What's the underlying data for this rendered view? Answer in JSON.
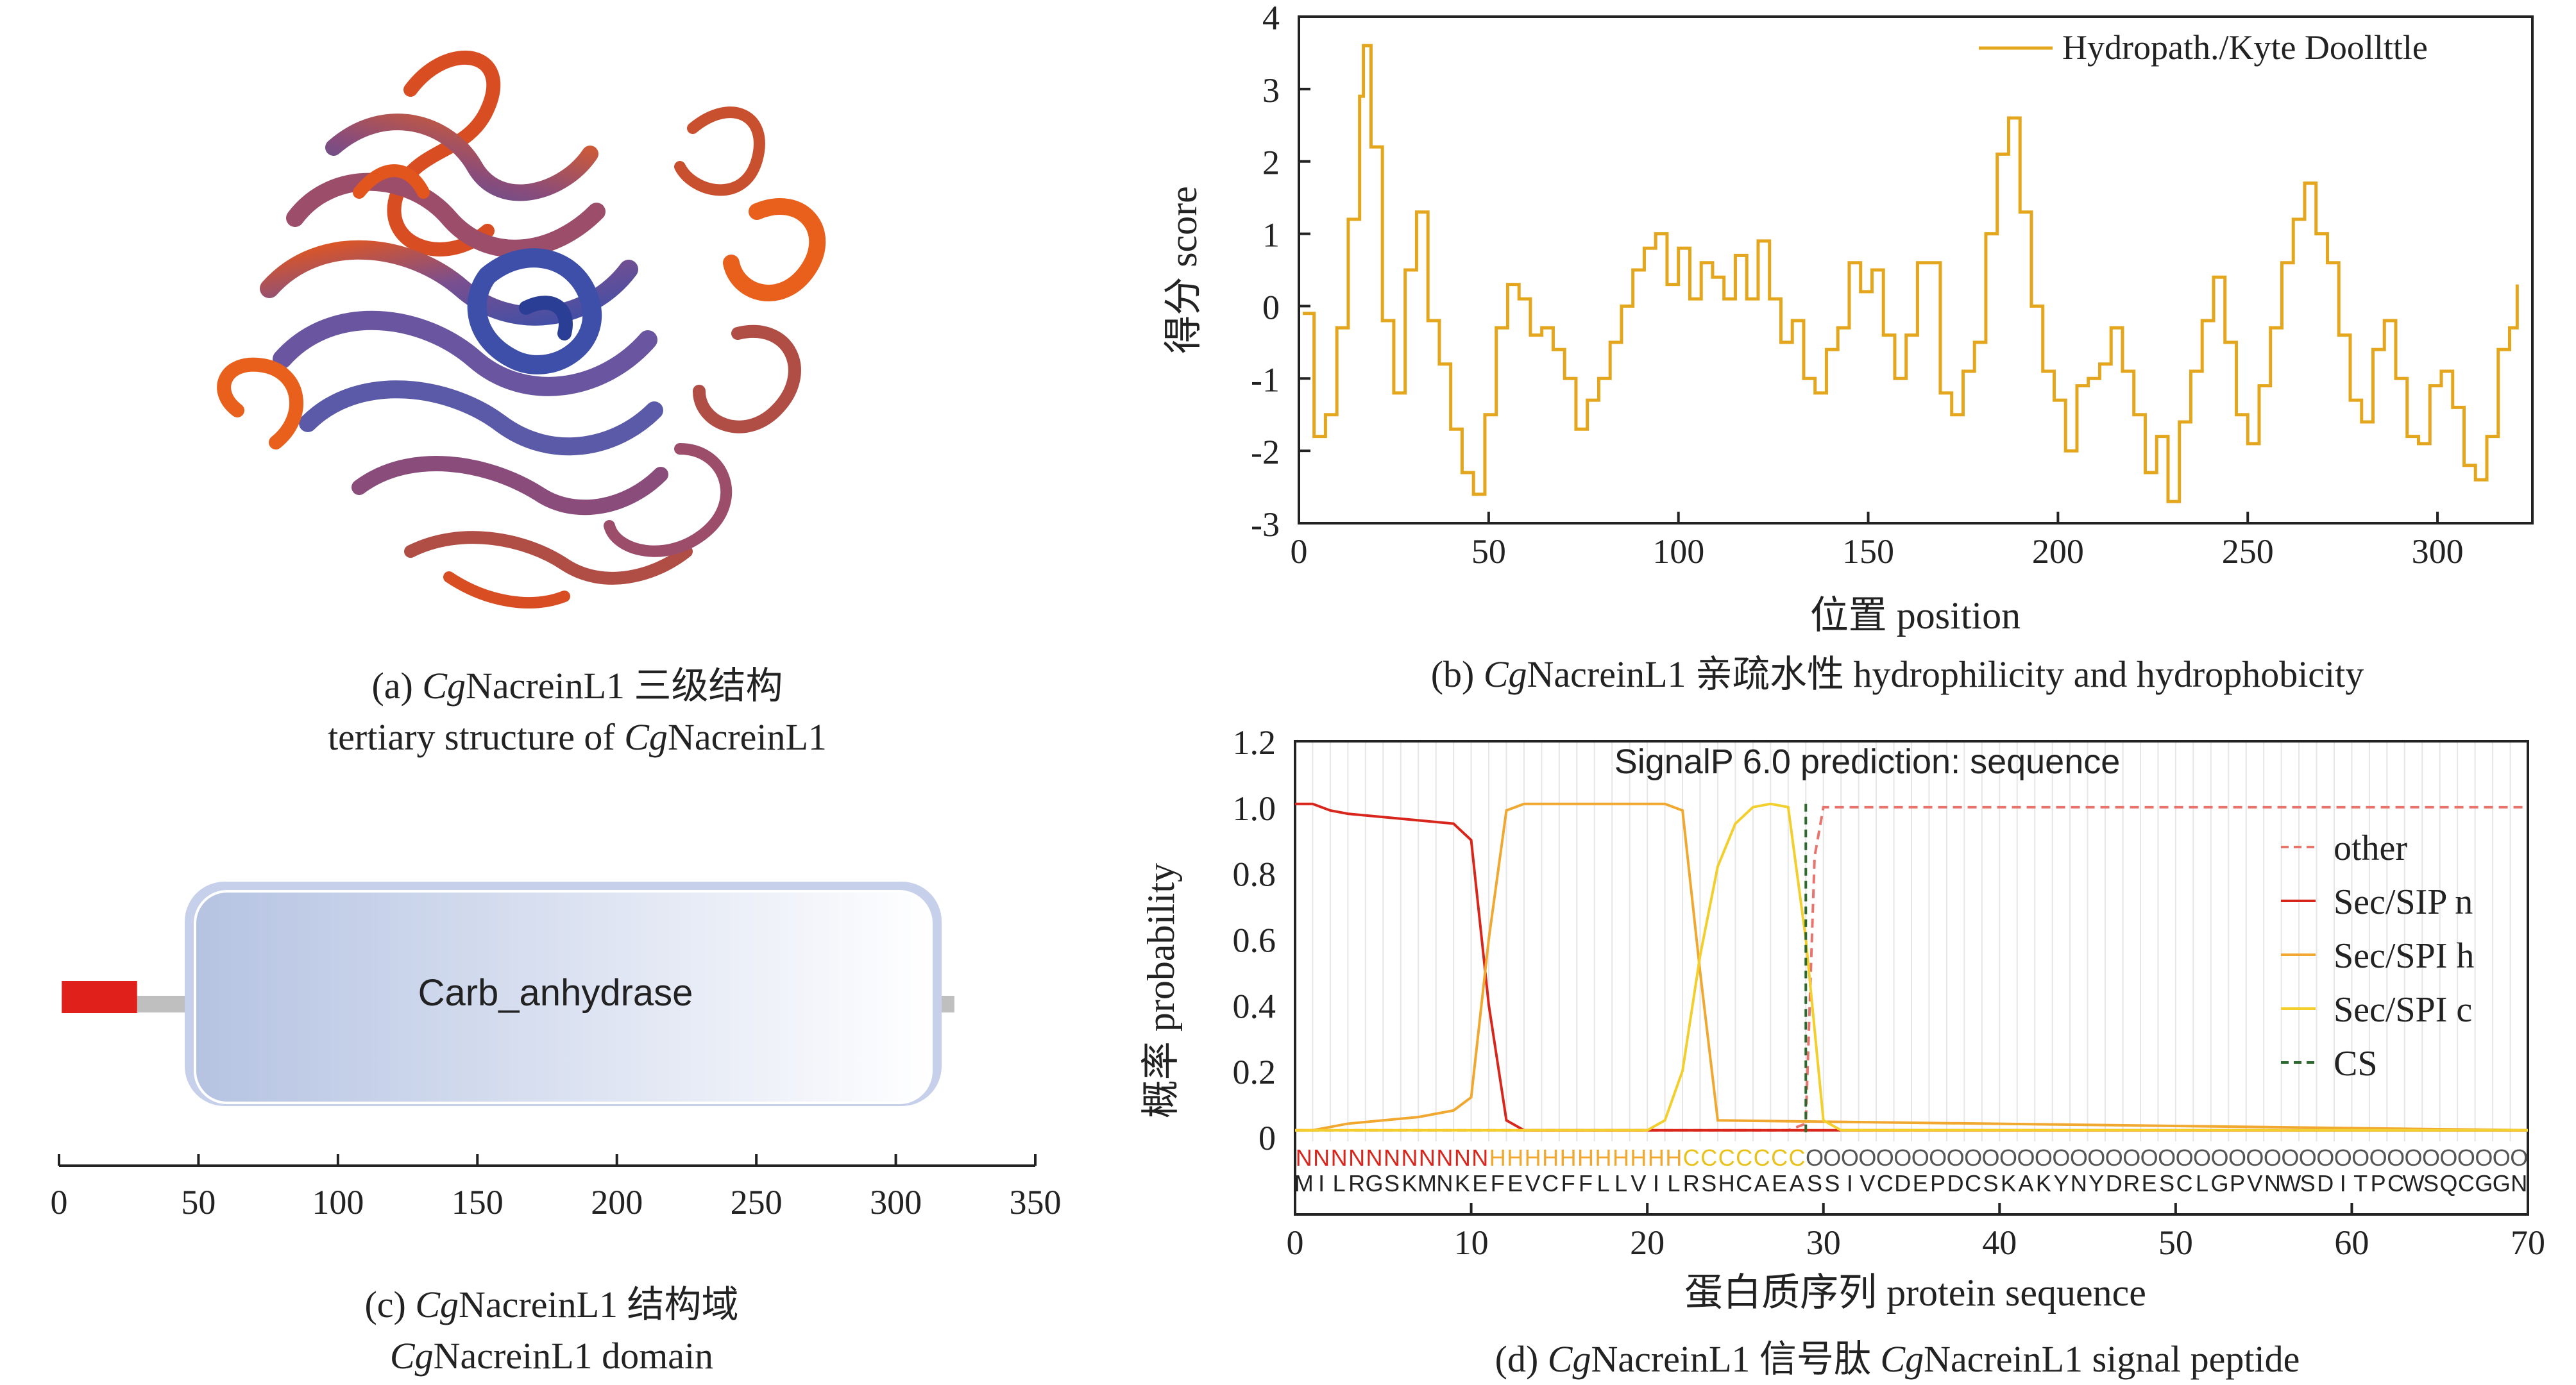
{
  "panel_a": {
    "caption_prefix": "(a) ",
    "caption_italic": "Cg",
    "caption_rest": "NacreinL1 三级结构",
    "caption_line2_text": "tertiary structure of ",
    "caption_line2_italic": "Cg",
    "caption_line2_rest": "NacreinL1"
  },
  "panel_b": {
    "caption_prefix": "(b) ",
    "caption_italic": "Cg",
    "caption_rest": "NacreinL1 亲疏水性 hydrophilicity and hydrophobicity",
    "chart_data": {
      "type": "line",
      "xlabel": "位置 position",
      "ylabel": "得分 score",
      "xlim": [
        0,
        325
      ],
      "ylim": [
        -3,
        4
      ],
      "xticks": [
        "0",
        "50",
        "100",
        "150",
        "200",
        "250",
        "300"
      ],
      "yticks": [
        "-3",
        "-2",
        "-1",
        "0",
        "1",
        "2",
        "3",
        "4"
      ],
      "legend_position": "top-right",
      "series": [
        {
          "name": "Hydropath./Kyte Doollttle",
          "color": "#e3a61c",
          "x": [
            1,
            4,
            7,
            10,
            13,
            16,
            17,
            19,
            22,
            25,
            28,
            31,
            34,
            37,
            40,
            43,
            46,
            49,
            52,
            55,
            58,
            61,
            64,
            67,
            70,
            73,
            76,
            79,
            82,
            85,
            88,
            91,
            94,
            97,
            100,
            103,
            106,
            109,
            112,
            115,
            118,
            121,
            124,
            127,
            130,
            133,
            136,
            139,
            142,
            145,
            148,
            151,
            154,
            157,
            160,
            163,
            166,
            169,
            172,
            175,
            178,
            181,
            184,
            187,
            190,
            193,
            196,
            199,
            202,
            205,
            208,
            211,
            214,
            217,
            220,
            223,
            226,
            229,
            232,
            235,
            238,
            241,
            244,
            247,
            250,
            253,
            256,
            259,
            262,
            265,
            268,
            271,
            274,
            277,
            280,
            283,
            286,
            289,
            292,
            295,
            298,
            301,
            304,
            307,
            310,
            313,
            316,
            319,
            321
          ],
          "y": [
            -0.1,
            -1.8,
            -1.5,
            -0.3,
            1.2,
            2.9,
            3.6,
            2.2,
            -0.2,
            -1.2,
            0.5,
            1.3,
            -0.2,
            -0.8,
            -1.7,
            -2.3,
            -2.6,
            -1.5,
            -0.3,
            0.3,
            0.1,
            -0.4,
            -0.3,
            -0.6,
            -1.0,
            -1.7,
            -1.3,
            -1.0,
            -0.5,
            0.0,
            0.5,
            0.8,
            1.0,
            0.3,
            0.8,
            0.1,
            0.6,
            0.4,
            0.1,
            0.7,
            0.1,
            0.9,
            0.1,
            -0.5,
            -0.2,
            -1.0,
            -1.2,
            -0.6,
            -0.3,
            0.6,
            0.2,
            0.5,
            -0.4,
            -1.0,
            -0.4,
            0.6,
            0.6,
            -1.2,
            -1.5,
            -0.9,
            -0.5,
            1.0,
            2.1,
            2.6,
            1.3,
            0.0,
            -0.9,
            -1.3,
            -2.0,
            -1.1,
            -1.0,
            -0.8,
            -0.3,
            -0.9,
            -1.5,
            -2.3,
            -1.8,
            -2.7,
            -1.6,
            -0.9,
            -0.2,
            0.4,
            -0.5,
            -1.5,
            -1.9,
            -1.1,
            -0.3,
            0.6,
            1.2,
            1.7,
            1.0,
            0.6,
            -0.4,
            -1.3,
            -1.6,
            -0.6,
            -0.2,
            -1.0,
            -1.8,
            -1.9,
            -1.1,
            -0.9,
            -1.4,
            -2.2,
            -2.4,
            -1.8,
            -0.6,
            -0.3,
            0.3
          ]
        }
      ]
    }
  },
  "panel_c": {
    "caption_prefix": "(c) ",
    "caption_italic": "Cg",
    "caption_rest": "NacreinL1 结构域",
    "caption_line2_italic": "Cg",
    "caption_line2_rest": "NacreinL1 domain",
    "domain_label": "Carb_anhydrase",
    "xticks": [
      "0",
      "50",
      "100",
      "150",
      "200",
      "250",
      "300",
      "350"
    ],
    "protein_length": 321,
    "signal_region": [
      1,
      28
    ],
    "domain_region": [
      49,
      316
    ],
    "colors": {
      "signal": "#e0211b",
      "domain_fill_left": "#b5c3e2",
      "domain_fill_right": "#ffffff",
      "line": "#bfbfbf"
    }
  },
  "panel_d": {
    "caption_prefix": "(d) ",
    "caption_italic": "Cg",
    "caption_mid": "NacreinL1 信号肽 ",
    "caption_italic2": "Cg",
    "caption_rest": "NacreinL1 signal peptide",
    "chart_data": {
      "type": "line",
      "title": "SignalP 6.0 prediction: sequence",
      "xlabel": "蛋白质序列 protein sequence",
      "ylabel": "概率 probability",
      "xlim": [
        0,
        70
      ],
      "ylim": [
        0,
        1.2
      ],
      "xticks": [
        "0",
        "10",
        "20",
        "30",
        "40",
        "50",
        "60",
        "70"
      ],
      "yticks": [
        "0",
        "0.2",
        "0.4",
        "0.6",
        "0.8",
        "1.0",
        "1.2"
      ],
      "legend_position": "right",
      "region_labels": "NNNNNNNNNNNHHHHHHHHHHHCCCCCCCOOOOOOOOOOOOOOOOOOOOOOOOOOOOOOOOOOOOOOOOO",
      "sequence": "MILRGSKMNKEFEVCFFLLVILRSHCAEASSIVCDEPDCSKAKYNYDRESCLGPVNWSDITPCWSQCGGN",
      "cs_position": 29,
      "series": [
        {
          "name": "other",
          "color": "#e8746e",
          "dashed": true,
          "x": [
            0,
            28,
            29,
            29.5,
            30,
            70
          ],
          "y": [
            0.02,
            0.02,
            0.04,
            0.85,
            1.0,
            1.0
          ]
        },
        {
          "name": "Sec/SIP n",
          "color": "#d9261c",
          "x": [
            0,
            1,
            2,
            3,
            5,
            7,
            9,
            10,
            11,
            12,
            13,
            20,
            70
          ],
          "y": [
            1.01,
            1.01,
            0.99,
            0.98,
            0.97,
            0.96,
            0.95,
            0.9,
            0.4,
            0.05,
            0.02,
            0.02,
            0.02
          ]
        },
        {
          "name": "Sec/SPI h",
          "color": "#f0a830",
          "x": [
            0,
            1,
            2,
            3,
            5,
            7,
            9,
            10,
            11,
            12,
            13,
            20,
            21,
            22,
            23,
            24,
            70
          ],
          "y": [
            0.02,
            0.02,
            0.03,
            0.04,
            0.05,
            0.06,
            0.08,
            0.12,
            0.6,
            0.99,
            1.01,
            1.01,
            1.01,
            0.99,
            0.5,
            0.05,
            0.02
          ]
        },
        {
          "name": "Sec/SPI c",
          "color": "#f2cf2d",
          "x": [
            0,
            20,
            21,
            22,
            23,
            24,
            25,
            26,
            27,
            28,
            29,
            30,
            31,
            70
          ],
          "y": [
            0.02,
            0.02,
            0.05,
            0.2,
            0.55,
            0.82,
            0.95,
            1.0,
            1.01,
            1.0,
            0.6,
            0.05,
            0.02,
            0.02
          ]
        },
        {
          "name": "CS",
          "color": "#2d6a2d",
          "dashed": true,
          "vertical_at": 29
        }
      ]
    }
  }
}
